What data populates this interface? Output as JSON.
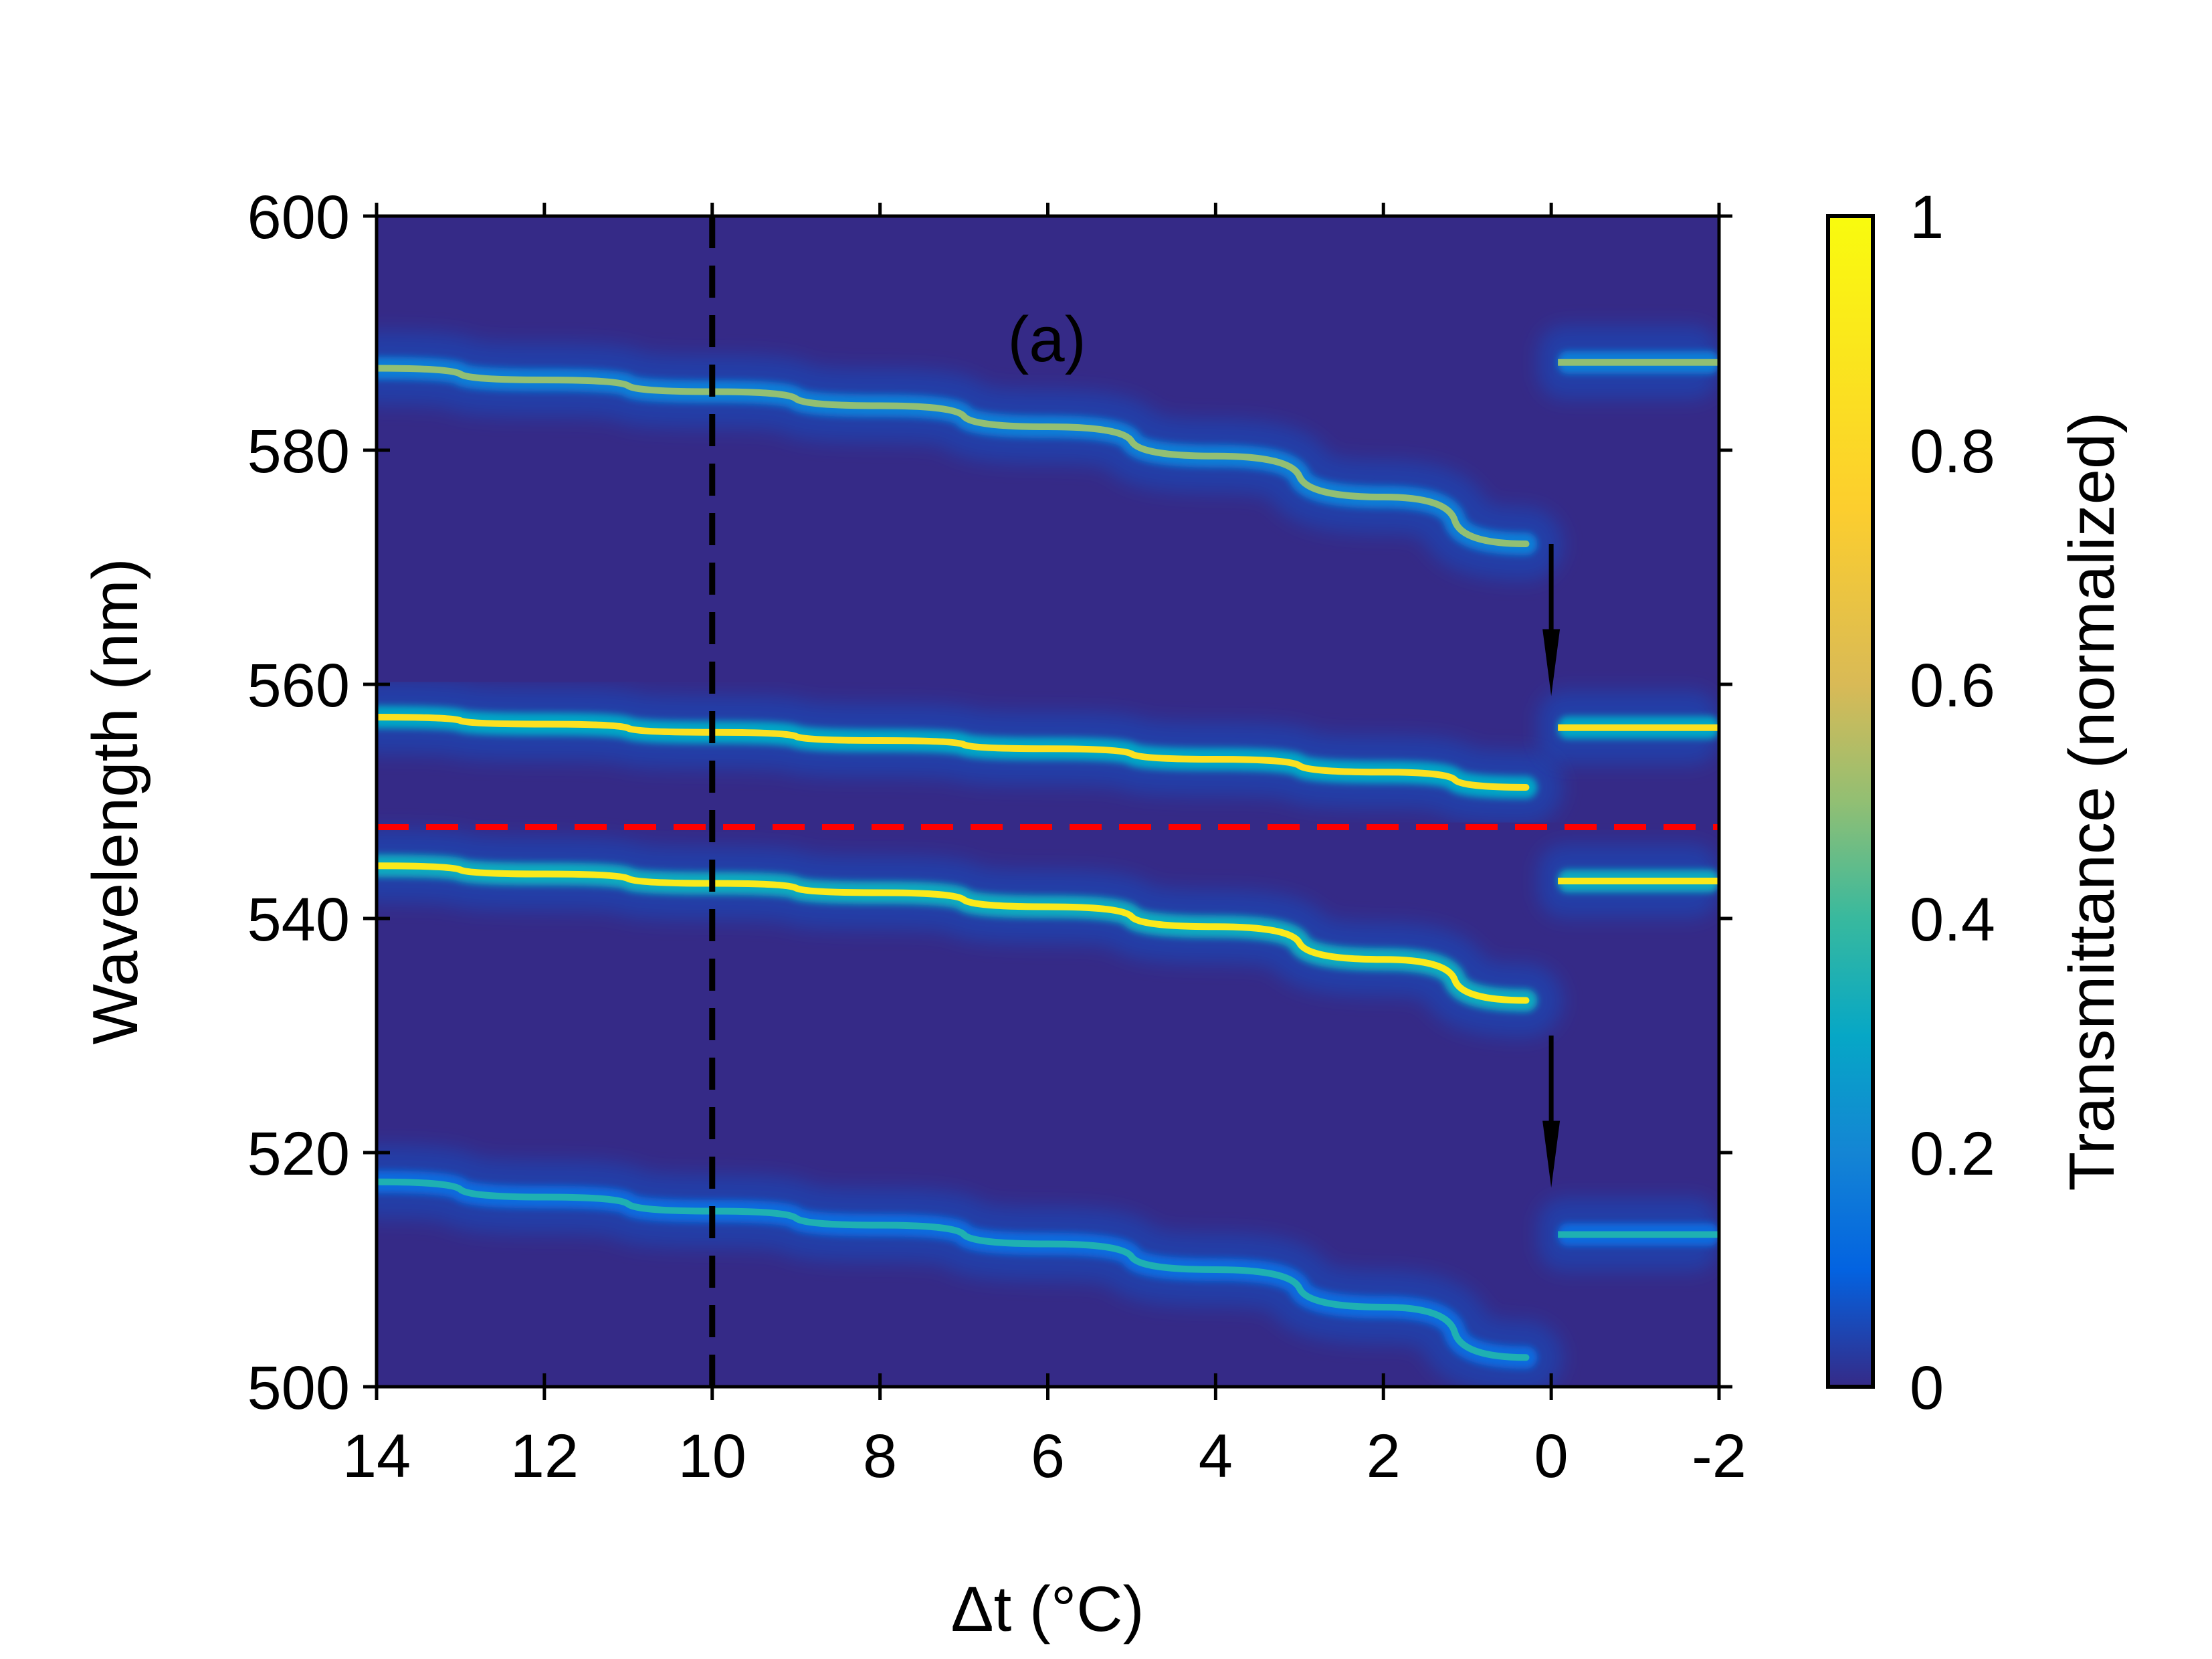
{
  "chart_data": {
    "type": "heatmap",
    "panel_label": "(a)",
    "xlabel": "Δt (°C)",
    "ylabel": "Wavelength (nm)",
    "xlim": [
      14,
      -2
    ],
    "ylim": [
      500,
      600
    ],
    "x_ticks": [
      14,
      12,
      10,
      8,
      6,
      4,
      2,
      0,
      -2
    ],
    "x_tick_labels": [
      "14",
      "12",
      "10",
      "8",
      "6",
      "4",
      "2",
      "0",
      "-2"
    ],
    "y_ticks": [
      500,
      520,
      540,
      560,
      580,
      600
    ],
    "y_tick_labels": [
      "500",
      "520",
      "540",
      "560",
      "580",
      "600"
    ],
    "colorbar": {
      "label": "Transmittance (normalized)",
      "range": [
        0,
        1
      ],
      "ticks": [
        0,
        0.2,
        0.4,
        0.6,
        0.8,
        1
      ],
      "tick_labels": [
        "0",
        "0.2",
        "0.4",
        "0.6",
        "0.8",
        "1"
      ],
      "colormap": "parula"
    },
    "series": [
      {
        "points": [
          [
            14,
            587.0
          ],
          [
            12,
            586.0
          ],
          [
            10,
            585.0
          ],
          [
            8,
            583.8
          ],
          [
            6,
            582.0
          ],
          [
            4,
            579.5
          ],
          [
            2,
            576.0
          ],
          [
            0.3,
            572.0
          ]
        ],
        "after_transition": {
          "x_range": [
            0,
            -2
          ],
          "wavelength": 587.5
        },
        "peak_transmittance": 0.5
      },
      {
        "points": [
          [
            14,
            557.2
          ],
          [
            12,
            556.6
          ],
          [
            10,
            555.9
          ],
          [
            8,
            555.2
          ],
          [
            6,
            554.5
          ],
          [
            4,
            553.6
          ],
          [
            2,
            552.5
          ],
          [
            0.3,
            551.2
          ]
        ],
        "after_transition": {
          "x_range": [
            0,
            -2
          ],
          "wavelength": 556.3
        },
        "peak_transmittance": 0.85
      },
      {
        "points": [
          [
            14,
            544.5
          ],
          [
            12,
            543.8
          ],
          [
            10,
            543.0
          ],
          [
            8,
            542.2
          ],
          [
            6,
            541.0
          ],
          [
            4,
            539.3
          ],
          [
            2,
            536.5
          ],
          [
            0.3,
            533.0
          ]
        ],
        "after_transition": {
          "x_range": [
            0,
            -2
          ],
          "wavelength": 543.2
        },
        "peak_transmittance": 0.9
      },
      {
        "points": [
          [
            14,
            517.5
          ],
          [
            12,
            516.2
          ],
          [
            10,
            515.0
          ],
          [
            8,
            513.8
          ],
          [
            6,
            512.2
          ],
          [
            4,
            510.0
          ],
          [
            2,
            506.8
          ],
          [
            0.3,
            502.5
          ]
        ],
        "after_transition": {
          "x_range": [
            0,
            -2
          ],
          "wavelength": 513.0
        },
        "peak_transmittance": 0.35
      }
    ],
    "annotations": {
      "vertical_dashed_line": {
        "x": 10,
        "color": "#000000"
      },
      "horizontal_dashed_line": {
        "y": 547.8,
        "color": "#ff0000"
      },
      "arrows": [
        {
          "x": 0,
          "from_y": 572,
          "to_y": 559
        },
        {
          "x": 0,
          "from_y": 530,
          "to_y": 517
        }
      ]
    },
    "background_color": "#352a87"
  }
}
